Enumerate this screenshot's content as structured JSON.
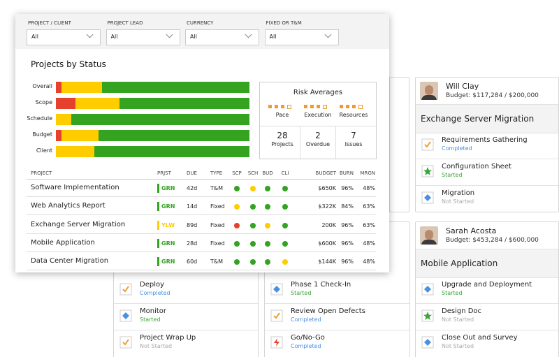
{
  "filters": [
    {
      "label": "PROJECT / CLIENT",
      "value": "All"
    },
    {
      "label": "PROJECT LEAD",
      "value": "All"
    },
    {
      "label": "CURRENCY",
      "value": "All"
    },
    {
      "label": "FIXED OR T&M",
      "value": "All"
    }
  ],
  "status_chart": {
    "type": "bar",
    "title": "Projects by Status",
    "categories": [
      "Overall",
      "Scope",
      "Schedule",
      "Budget",
      "Client"
    ],
    "series": [
      {
        "color": "#e5412d",
        "values": [
          3,
          10,
          0,
          3,
          0
        ]
      },
      {
        "color": "#ffcc00",
        "values": [
          21,
          23,
          8,
          19,
          20
        ]
      },
      {
        "color": "#33a320",
        "values": [
          76,
          67,
          92,
          78,
          80
        ]
      }
    ]
  },
  "risk": {
    "title": "Risk Averages",
    "ratings": [
      {
        "label": "Pace",
        "value": 3
      },
      {
        "label": "Execution",
        "value": 3
      },
      {
        "label": "Resources",
        "value": 3
      }
    ],
    "stats": [
      {
        "value": 28,
        "label": "Projects"
      },
      {
        "value": 2,
        "label": "Overdue"
      },
      {
        "value": 7,
        "label": "Issues"
      }
    ]
  },
  "table": {
    "headers": [
      "PROJECT",
      "PRJST",
      "DUE",
      "TYPE",
      "SCP",
      "SCH",
      "BUD",
      "CLI",
      "BUDGET",
      "BURN",
      "MRGN"
    ],
    "rows": [
      {
        "project": "Software Implementation",
        "status": "GRN",
        "status_color": "#33a320",
        "due": "42d",
        "type": "T&M",
        "indicators": [
          "#33a320",
          "#ffcc00",
          "#33a320",
          "#33a320"
        ],
        "budget": "$650K",
        "burn": "96%",
        "margin": "48%"
      },
      {
        "project": "Web Analytics Report",
        "status": "GRN",
        "status_color": "#33a320",
        "due": "14d",
        "type": "Fixed",
        "indicators": [
          "#ffcc00",
          "#33a320",
          "#33a320",
          "#33a320"
        ],
        "budget": "$322K",
        "burn": "84%",
        "margin": "63%"
      },
      {
        "project": "Exchange Server Migration",
        "status": "YLW",
        "status_color": "#ffcc00",
        "due": "89d",
        "type": "Fixed",
        "indicators": [
          "#e5412d",
          "#33a320",
          "#ffcc00",
          "#33a320"
        ],
        "budget": "200K",
        "burn": "96%",
        "margin": "63%"
      },
      {
        "project": "Mobile Application",
        "status": "GRN",
        "status_color": "#33a320",
        "due": "28d",
        "type": "Fixed",
        "indicators": [
          "#33a320",
          "#33a320",
          "#33a320",
          "#33a320"
        ],
        "budget": "$600K",
        "burn": "96%",
        "margin": "48%"
      },
      {
        "project": "Data Center Migration",
        "status": "GRN",
        "status_color": "#33a320",
        "due": "60d",
        "type": "T&M",
        "indicators": [
          "#33a320",
          "#33a320",
          "#33a320",
          "#ffcc00"
        ],
        "budget": "$144K",
        "burn": "96%",
        "margin": "48%"
      }
    ]
  },
  "cards": [
    {
      "name": "Will Clay",
      "budget": "Budget: $117,284 / $200,000",
      "project": "Exchange Server Migration",
      "tasks": [
        {
          "title": "Requirements Gathering",
          "status": "Completed",
          "status_color": "#4a90e2"
        },
        {
          "title": "Configuration Sheet",
          "status": "Started",
          "status_color": "#3aa53a"
        },
        {
          "title": "Migration",
          "status": "Not Started",
          "status_color": "#aaaaaa"
        }
      ]
    },
    {
      "name": "Sarah Acosta",
      "budget": "Budget: $453,284 / $600,000",
      "project": "Mobile Application",
      "tasks": [
        {
          "title": "Upgrade and Deployment",
          "status": "Started",
          "status_color": "#3aa53a"
        },
        {
          "title": "Design Doc",
          "status": "Not Started",
          "status_color": "#aaaaaa"
        },
        {
          "title": "Close Out and Survey",
          "status": "Not Started",
          "status_color": "#aaaaaa"
        }
      ]
    },
    {
      "tasks": [
        {
          "title": "Phase 1 Check-In",
          "status": "Started",
          "status_color": "#3aa53a"
        },
        {
          "title": "Review Open Defects",
          "status": "Completed",
          "status_color": "#4a90e2"
        },
        {
          "title": "Go/No-Go",
          "status": "Completed",
          "status_color": "#4a90e2"
        }
      ]
    },
    {
      "tasks": [
        {
          "title": "Deploy",
          "status": "Completed",
          "status_color": "#4a90e2"
        },
        {
          "title": "Monitor",
          "status": "Started",
          "status_color": "#3aa53a"
        },
        {
          "title": "Project Wrap Up",
          "status": "Not Started",
          "status_color": "#aaaaaa"
        }
      ]
    }
  ]
}
